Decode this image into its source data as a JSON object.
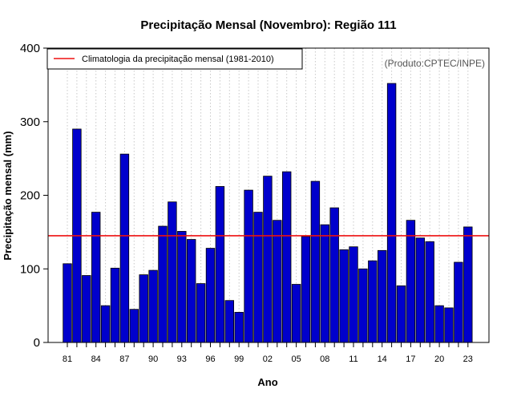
{
  "chart_data": {
    "type": "bar",
    "title": "Precipitação Mensal (Novembro): Região 111",
    "xlabel": "Ano",
    "ylabel": "Precipitação mensal (mm)",
    "credit": "(Produto:CPTEC/INPE)",
    "ylim": [
      0,
      400
    ],
    "yticks": [
      0,
      100,
      200,
      300,
      400
    ],
    "xtick_labels": [
      "81",
      "84",
      "87",
      "90",
      "93",
      "96",
      "99",
      "02",
      "05",
      "08",
      "11",
      "14",
      "17",
      "20",
      "23"
    ],
    "categories": [
      "1981",
      "1982",
      "1983",
      "1984",
      "1985",
      "1986",
      "1987",
      "1988",
      "1989",
      "1990",
      "1991",
      "1992",
      "1993",
      "1994",
      "1995",
      "1996",
      "1997",
      "1998",
      "1999",
      "2000",
      "2001",
      "2002",
      "2003",
      "2004",
      "2005",
      "2006",
      "2007",
      "2008",
      "2009",
      "2010",
      "2011",
      "2012",
      "2013",
      "2014",
      "2015",
      "2016",
      "2017",
      "2018",
      "2019",
      "2020",
      "2021",
      "2022",
      "2023"
    ],
    "values": [
      107,
      290,
      91,
      177,
      50,
      101,
      256,
      45,
      92,
      98,
      158,
      191,
      151,
      140,
      80,
      128,
      212,
      57,
      41,
      207,
      177,
      226,
      166,
      232,
      79,
      144,
      219,
      160,
      183,
      126,
      130,
      100,
      111,
      125,
      352,
      77,
      166,
      142,
      137,
      50,
      47,
      109,
      157
    ],
    "climatology": {
      "label": "Climatologia da precipitação mensal (1981-2010)",
      "value": 145
    },
    "legend_position": "top-left",
    "grid": "vertical-dotted",
    "colors": {
      "bar_fill": "#0000cc",
      "bar_edge": "#000000",
      "climatology_line": "#ee1111",
      "grid": "#c8c8c8"
    }
  }
}
